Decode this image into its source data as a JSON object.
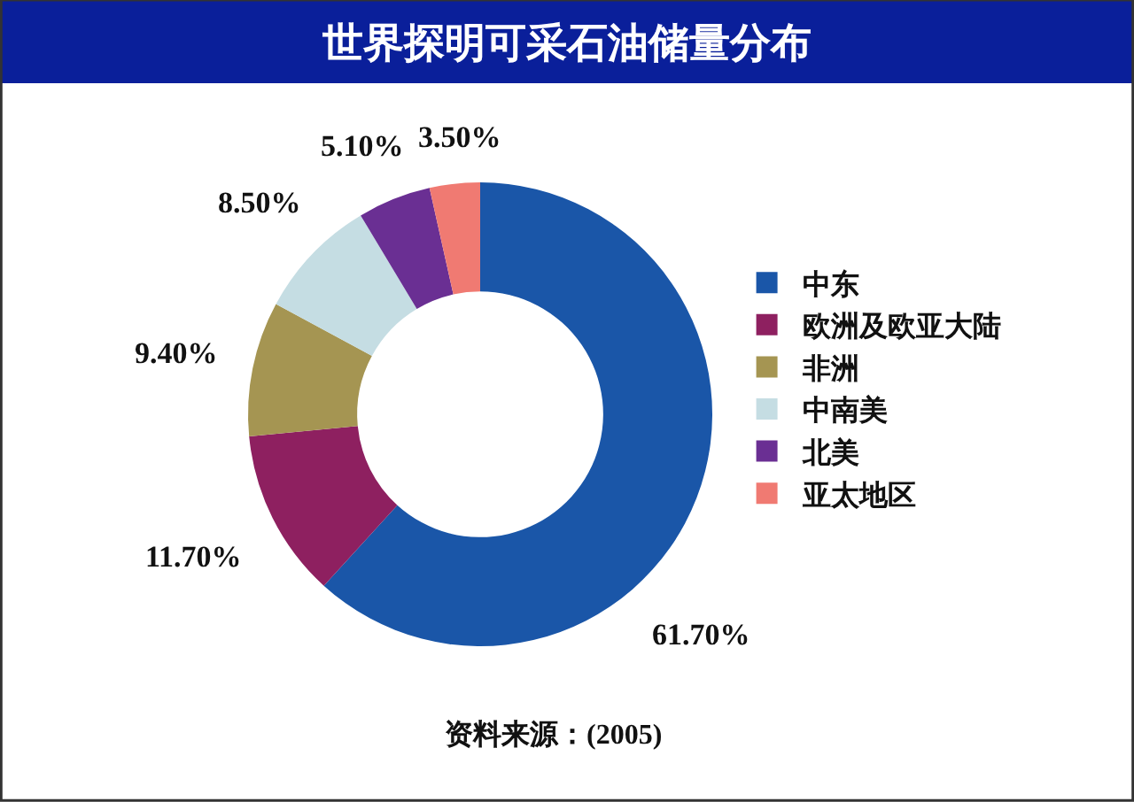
{
  "chart_data": {
    "type": "donut",
    "title": "世界探明可采石油储量分布",
    "categories": [
      "中东",
      "欧洲及欧亚大陆",
      "非洲",
      "中南美",
      "北美",
      "亚太地区"
    ],
    "values": [
      61.7,
      11.7,
      9.4,
      8.5,
      5.1,
      3.5
    ],
    "colors": [
      "#1a56a8",
      "#8e2060",
      "#a59552",
      "#c5dde3",
      "#6a2f93",
      "#f07a72"
    ],
    "value_labels": [
      "61.70%",
      "11.70%",
      "9.40%",
      "8.50%",
      "5.10%",
      "3.50%"
    ],
    "legend": "right",
    "annotations": [
      "资料来源：(2005)"
    ]
  }
}
